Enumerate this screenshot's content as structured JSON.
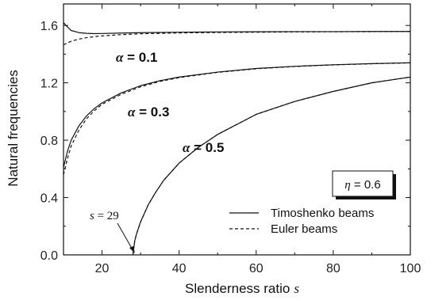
{
  "chart_data": {
    "type": "line",
    "title": "",
    "xlabel": "Slenderness ratio",
    "xlabel_var": "s",
    "ylabel": "Natural frequencies",
    "xlim": [
      10,
      100
    ],
    "ylim": [
      0.0,
      1.75
    ],
    "xticks": [
      "20",
      "40",
      "60",
      "80",
      "100"
    ],
    "yticks": [
      "0.0",
      "0.4",
      "0.8",
      "1.2",
      "1.6"
    ],
    "grid": false,
    "legend_placement": "bottom-right",
    "legend": [
      {
        "label": "Timoshenko beams",
        "style": "solid"
      },
      {
        "label": "Euler beams",
        "style": "dashed"
      }
    ],
    "eta_box": {
      "symbol": "η",
      "text": " = 0.6"
    },
    "annotations": {
      "alpha1": {
        "symbol": "α",
        "text": " = 0.1"
      },
      "alpha3": {
        "symbol": "α",
        "text": " = 0.3"
      },
      "alpha5": {
        "symbol": "α",
        "text": " = 0.5"
      },
      "s29": {
        "symbol": "s",
        "text": " = 29"
      }
    },
    "series": [
      {
        "alpha": 0.1,
        "style": "solid",
        "x": [
          10,
          11,
          12,
          14,
          16,
          18,
          20,
          25,
          30,
          40,
          50,
          60,
          70,
          80,
          90,
          100
        ],
        "y": [
          1.62,
          1.59,
          1.565,
          1.55,
          1.545,
          1.543,
          1.544,
          1.547,
          1.55,
          1.553,
          1.555,
          1.556,
          1.557,
          1.557,
          1.558,
          1.558
        ]
      },
      {
        "alpha": 0.1,
        "style": "dashed",
        "x": [
          10,
          12,
          14,
          16,
          18,
          20,
          25,
          30,
          40,
          50,
          60,
          70,
          80,
          90,
          100
        ],
        "y": [
          1.465,
          1.49,
          1.505,
          1.515,
          1.522,
          1.527,
          1.536,
          1.542,
          1.548,
          1.551,
          1.553,
          1.555,
          1.556,
          1.557,
          1.558
        ]
      },
      {
        "alpha": 0.3,
        "style": "solid",
        "x": [
          10,
          11,
          12,
          14,
          16,
          18,
          20,
          25,
          30,
          35,
          40,
          50,
          60,
          70,
          80,
          90,
          100
        ],
        "y": [
          0.61,
          0.72,
          0.8,
          0.9,
          0.97,
          1.02,
          1.06,
          1.13,
          1.18,
          1.215,
          1.24,
          1.275,
          1.3,
          1.315,
          1.326,
          1.334,
          1.34
        ]
      },
      {
        "alpha": 0.3,
        "style": "dashed",
        "x": [
          10,
          11,
          12,
          14,
          16,
          18,
          20,
          25,
          30,
          35,
          40,
          50,
          60,
          70,
          80,
          90,
          100
        ],
        "y": [
          0.56,
          0.67,
          0.76,
          0.87,
          0.95,
          1.005,
          1.05,
          1.12,
          1.172,
          1.21,
          1.236,
          1.273,
          1.298,
          1.314,
          1.325,
          1.333,
          1.339
        ]
      },
      {
        "alpha": 0.5,
        "style": "solid",
        "x": [
          28,
          28.5,
          29,
          30,
          32,
          34,
          36,
          40,
          45,
          50,
          60,
          70,
          80,
          90,
          100
        ],
        "y": [
          0.0,
          0.1,
          0.15,
          0.23,
          0.35,
          0.44,
          0.52,
          0.64,
          0.75,
          0.84,
          0.98,
          1.07,
          1.14,
          1.2,
          1.24
        ]
      },
      {
        "alpha": 0.5,
        "style": "dashed",
        "x": [
          28,
          28.5,
          29,
          30,
          32,
          34,
          36,
          40,
          45,
          50,
          60,
          70,
          80,
          90,
          100
        ],
        "y": [
          0.0,
          0.1,
          0.15,
          0.23,
          0.35,
          0.44,
          0.52,
          0.64,
          0.75,
          0.84,
          0.98,
          1.07,
          1.14,
          1.2,
          1.24
        ]
      }
    ]
  }
}
